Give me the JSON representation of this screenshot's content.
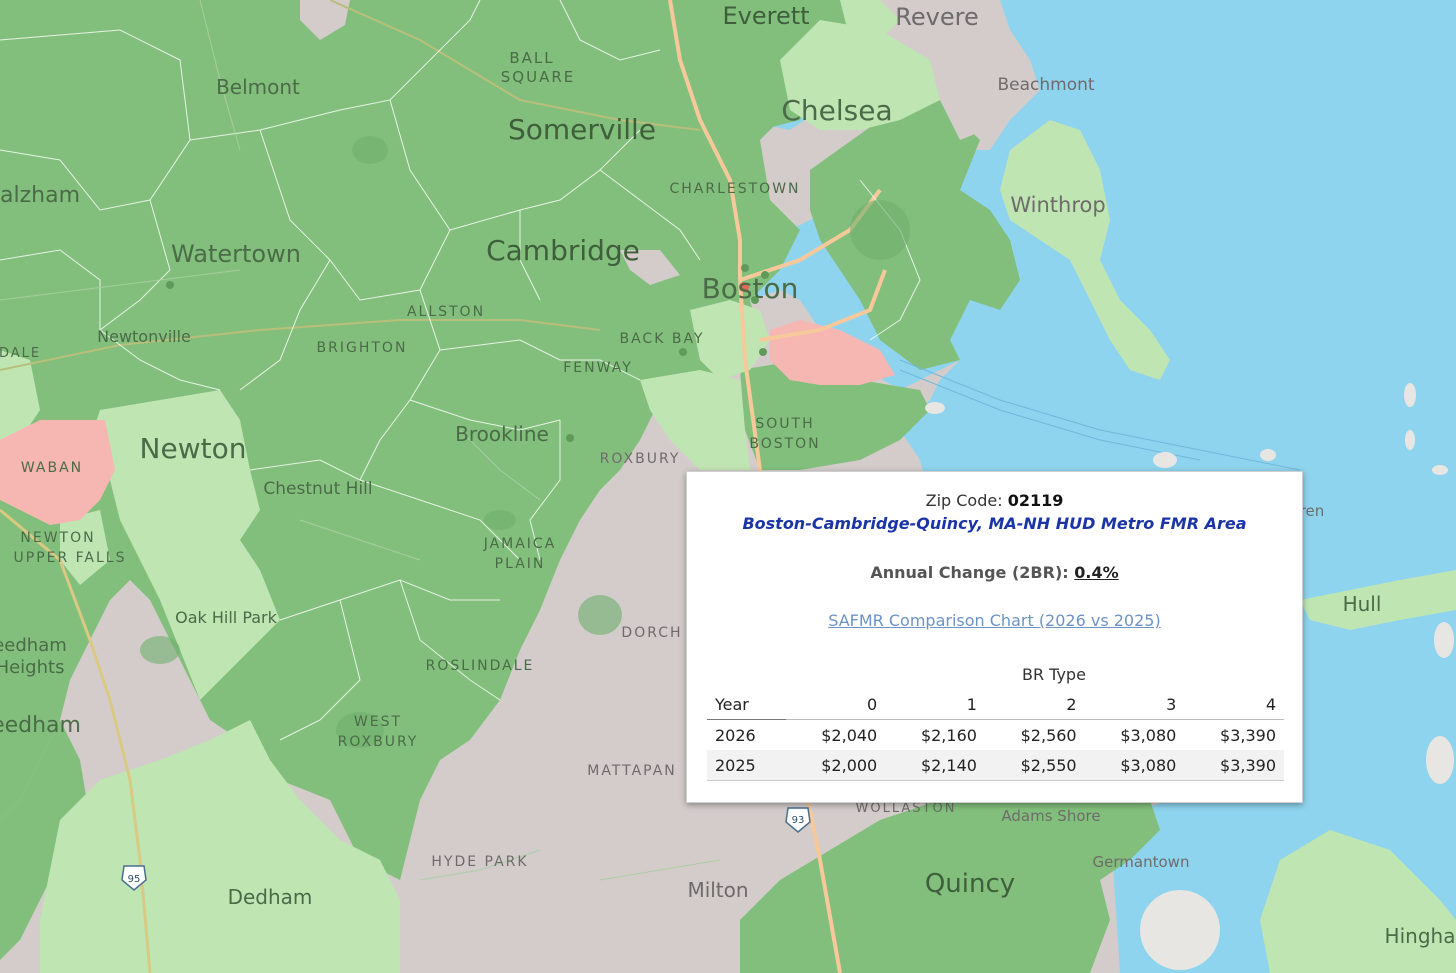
{
  "map": {
    "colors": {
      "water": "#8fd4ee",
      "dark_green": "#82bf7c",
      "light_green": "#bfe5b3",
      "pink": "#f6b6b2",
      "grey": "#d3cccb"
    },
    "labels": {
      "everett": "Everett",
      "revere": "Revere",
      "ball_square_1": "BALL",
      "ball_square_2": "SQUARE",
      "belmont": "Belmont",
      "beachmont": "Beachmont",
      "somerville": "Somerville",
      "chelsea": "Chelsea",
      "waltham": "alzham",
      "charlestown": "CHARLESTOWN",
      "winthrop": "Winthrop",
      "watertown": "Watertown",
      "cambridge": "Cambridge",
      "boston": "Boston",
      "newtonville": "Newtonville",
      "allston": "ALLSTON",
      "brighton": "BRIGHTON",
      "back_bay": "BACK BAY",
      "dale": "DALE",
      "fenway": "FENWAY",
      "newton": "Newton",
      "brookline": "Brookline",
      "south_boston_1": "SOUTH",
      "south_boston_2": "BOSTON",
      "waban": "WABAN",
      "roxbury": "ROXBURY",
      "chestnut_hill": "Chestnut Hill",
      "newton_upper_falls_1": "NEWTON",
      "newton_upper_falls_2": "UPPER FALLS",
      "jamaica_plain_1": "JAMAICA",
      "jamaica_plain_2": "PLAIN",
      "hull": "Hull",
      "oak_hill_park": "Oak Hill Park",
      "dorchester": "DORCH",
      "needham_heights_1": "eedham",
      "needham_heights_2": "Heights",
      "roslindale": "ROSLINDALE",
      "needham": "eedham",
      "west_roxbury_1": "WEST",
      "west_roxbury_2": "ROXBURY",
      "mattapan": "MATTAPAN",
      "wollaston": "WOLLASTON",
      "adams_shore": "Adams Shore",
      "germantown": "Germantown",
      "hyde_park": "HYDE PARK",
      "milton": "Milton",
      "quincy": "Quincy",
      "dedham": "Dedham",
      "hingham": "Hingha",
      "island_partial": "ren",
      "shield_95": "95",
      "shield_93": "93"
    }
  },
  "popup": {
    "zip_label": "Zip Code:",
    "zip_value": "02119",
    "area_name": "Boston-Cambridge-Quincy, MA-NH HUD Metro FMR Area",
    "annual_change_label": "Annual Change (2BR):",
    "annual_change_value": "0.4%",
    "chart_link": "SAFMR Comparison Chart (2026 vs 2025)",
    "br_type_header": "BR Type",
    "year_header": "Year",
    "br_columns": [
      "0",
      "1",
      "2",
      "3",
      "4"
    ],
    "rows": [
      {
        "year": "2026",
        "values": [
          "$2,040",
          "$2,160",
          "$2,560",
          "$3,080",
          "$3,390"
        ]
      },
      {
        "year": "2025",
        "values": [
          "$2,000",
          "$2,140",
          "$2,550",
          "$3,080",
          "$3,390"
        ]
      }
    ]
  }
}
